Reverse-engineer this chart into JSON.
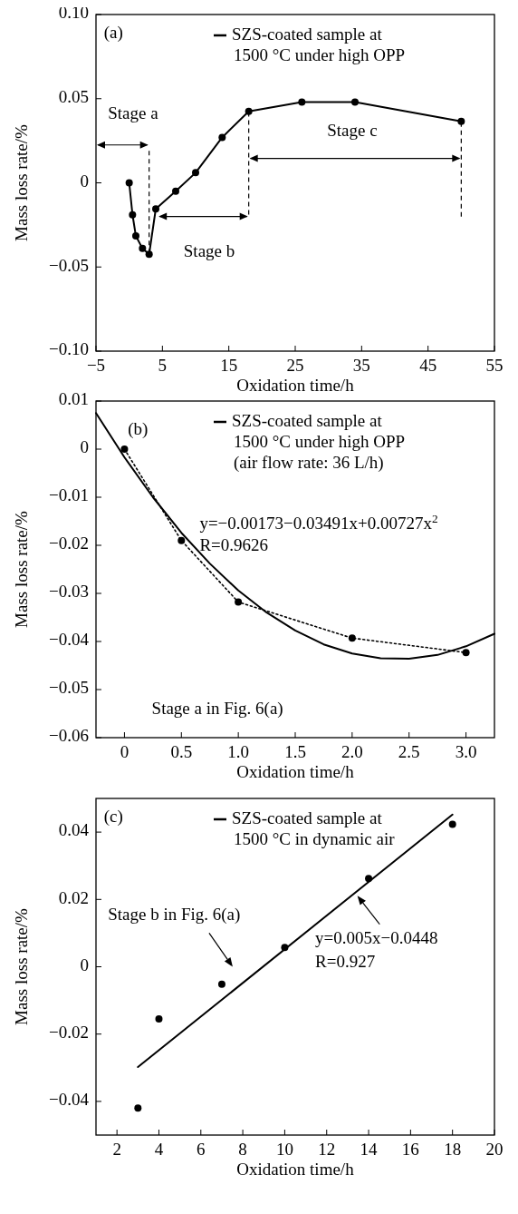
{
  "chart_data": [
    {
      "type": "line",
      "xlabel": "Oxidation time/h",
      "ylabel": "Mass loss rate/%",
      "xlim": [
        -5,
        55
      ],
      "xticks": [
        {
          "value": -5,
          "label": "−5"
        },
        5,
        15,
        25,
        35,
        45,
        55
      ],
      "ylim": [
        -0.1,
        0.1
      ],
      "yticks": [
        {
          "value": -0.1,
          "label": "−0.10"
        },
        {
          "value": -0.05,
          "label": "−0.05"
        },
        0,
        0.05,
        {
          "value": 0.1,
          "label": "0.10"
        }
      ],
      "marker": "circle",
      "legend": "top right",
      "annotations": [
        "(a)",
        "Stage a",
        "Stage b",
        "Stage c"
      ],
      "series": [
        {
          "name": "SZS-coated sample at\n1500 °C under high OPP",
          "color": "#000000",
          "x": [
            0,
            0.5,
            1,
            2,
            3,
            4,
            7,
            10,
            14,
            18,
            26,
            34,
            50
          ],
          "values": [
            0,
            -0.019,
            -0.0315,
            -0.039,
            -0.0425,
            -0.0155,
            -0.005,
            0.006,
            0.027,
            0.0425,
            0.048,
            0.048,
            0.0365
          ]
        }
      ]
    },
    {
      "type": "line",
      "xlabel": "Oxidation time/h",
      "ylabel": "Mass loss rate/%",
      "xlim": [
        -0.25,
        3.25
      ],
      "xticks": [
        0,
        0.5,
        {
          "value": 1,
          "label": "1.0"
        },
        1.5,
        {
          "value": 2,
          "label": "2.0"
        },
        2.5,
        {
          "value": 3,
          "label": "3.0"
        }
      ],
      "ylim": [
        -0.06,
        0.01
      ],
      "yticks": [
        {
          "value": -0.06,
          "label": "−0.06"
        },
        {
          "value": -0.05,
          "label": "−0.05"
        },
        {
          "value": -0.04,
          "label": "−0.04"
        },
        {
          "value": -0.03,
          "label": "−0.03"
        },
        {
          "value": -0.02,
          "label": "−0.02"
        },
        {
          "value": -0.01,
          "label": "−0.01"
        },
        0,
        0.01
      ],
      "legend": "top right",
      "annotations": [
        "(b)",
        "y=−0.00173−0.03491x+0.00727x$^{2}$",
        "R=0.9626",
        "Stage a in Fig. 6(a)"
      ],
      "series": [
        {
          "marker": "circle",
          "line_style": "dotted",
          "color": "#000000",
          "x": [
            0,
            0.5,
            1,
            2,
            3
          ],
          "values": [
            0,
            -0.019,
            -0.0318,
            -0.0393,
            -0.0423
          ]
        },
        {
          "marker": "none",
          "line_style": "solid",
          "name": "SZS-coated sample at\n1500 °C under high OPP\n(air flow rate: 36 L/h)",
          "color": "#000000",
          "x": [
            -0.25,
            0,
            0.25,
            0.5,
            0.75,
            1,
            1.25,
            1.5,
            1.75,
            2,
            2.25,
            2.5,
            2.75,
            3,
            3.25
          ],
          "values": [
            0.0075,
            -0.0017,
            -0.01,
            -0.0174,
            -0.0238,
            -0.0294,
            -0.034,
            -0.0377,
            -0.0406,
            -0.0425,
            -0.0435,
            -0.0436,
            -0.0428,
            -0.041,
            -0.0384
          ]
        }
      ]
    },
    {
      "type": "scatter",
      "xlabel": "Oxidation time/h",
      "ylabel": "Mass loss rate/%",
      "xlim": [
        1,
        20
      ],
      "xticks": [
        2,
        4,
        6,
        8,
        10,
        12,
        14,
        16,
        18,
        20
      ],
      "ylim": [
        -0.05,
        0.05
      ],
      "yticks": [
        {
          "value": -0.04,
          "label": "−0.04"
        },
        {
          "value": -0.02,
          "label": "−0.02"
        },
        0,
        0.02,
        0.04
      ],
      "legend": "top right",
      "annotations": [
        "(c)",
        "Stage b in Fig. 6(a)",
        "y=0.005x−0.0448",
        "R=0.927"
      ],
      "series": [
        {
          "marker": "circle",
          "color": "#000000",
          "x": [
            3,
            4,
            7,
            10,
            14,
            18
          ],
          "values": [
            -0.042,
            -0.0155,
            -0.0052,
            0.0057,
            0.0262,
            0.0423
          ]
        },
        {
          "type": "line",
          "marker": "none",
          "line_style": "solid",
          "name": "SZS-coated sample at\n1500 °C in dynamic air",
          "color": "#000000",
          "x": [
            3,
            18
          ],
          "values": [
            -0.0298,
            0.0452
          ]
        }
      ]
    }
  ]
}
